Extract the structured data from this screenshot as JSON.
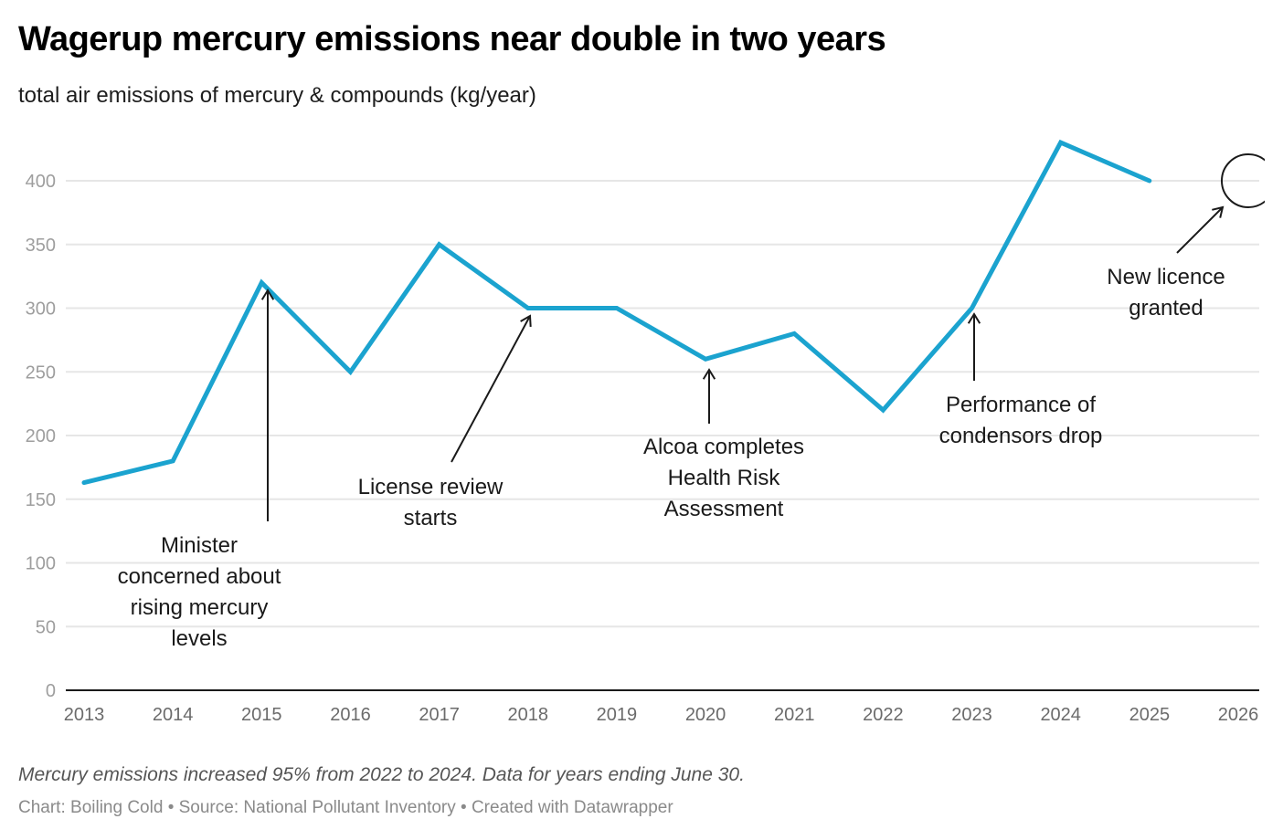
{
  "header": {
    "title": "Wagerup mercury emissions near double in two years",
    "subtitle": "total air emissions of mercury & compounds (kg/year)"
  },
  "footer": {
    "note": "Mercury emissions increased 95% from 2022 to 2024. Data for years ending June 30.",
    "byline": "Chart: Boiling Cold • Source: National Pollutant Inventory • Created with Datawrapper"
  },
  "colors": {
    "line": "#1ba3cf",
    "grid": "#e6e6e6",
    "axis": "#1a1a1a",
    "annotation": "#1a1a1a"
  },
  "chart_data": {
    "type": "line",
    "title": "Wagerup mercury emissions near double in two years",
    "subtitle": "total air emissions of mercury & compounds (kg/year)",
    "xlabel": "",
    "ylabel": "",
    "xlim": [
      2013,
      2026
    ],
    "ylim": [
      0,
      400
    ],
    "grid": true,
    "x_ticks": [
      "2013",
      "2014",
      "2015",
      "2016",
      "2017",
      "2018",
      "2019",
      "2020",
      "2021",
      "2022",
      "2023",
      "2024",
      "2025",
      "2026"
    ],
    "y_ticks": [
      0,
      50,
      100,
      150,
      200,
      250,
      300,
      350,
      400
    ],
    "series": [
      {
        "name": "Mercury & compounds (kg/year)",
        "x": [
          2013,
          2014,
          2015,
          2016,
          2017,
          2018,
          2019,
          2020,
          2021,
          2022,
          2023,
          2024,
          2025
        ],
        "values": [
          163,
          180,
          320,
          250,
          350,
          300,
          300,
          260,
          280,
          220,
          300,
          430,
          400
        ]
      }
    ],
    "annotations": [
      {
        "text": [
          "Minister",
          "concerned about",
          "rising mercury",
          "levels"
        ],
        "target": [
          2015,
          320
        ],
        "arrow": "vertical"
      },
      {
        "text": [
          "License review",
          "starts"
        ],
        "target": [
          2018,
          300
        ],
        "arrow": "diagonal"
      },
      {
        "text": [
          "Alcoa completes",
          "Health Risk",
          "Assessment"
        ],
        "target": [
          2020,
          260
        ],
        "arrow": "vertical"
      },
      {
        "text": [
          "Performance of",
          "condensors drop"
        ],
        "target": [
          2023,
          300
        ],
        "arrow": "vertical"
      },
      {
        "text": [
          "New licence",
          "granted"
        ],
        "target": [
          2026,
          400
        ],
        "arrow": "diagonal",
        "marker": "circle"
      }
    ]
  }
}
